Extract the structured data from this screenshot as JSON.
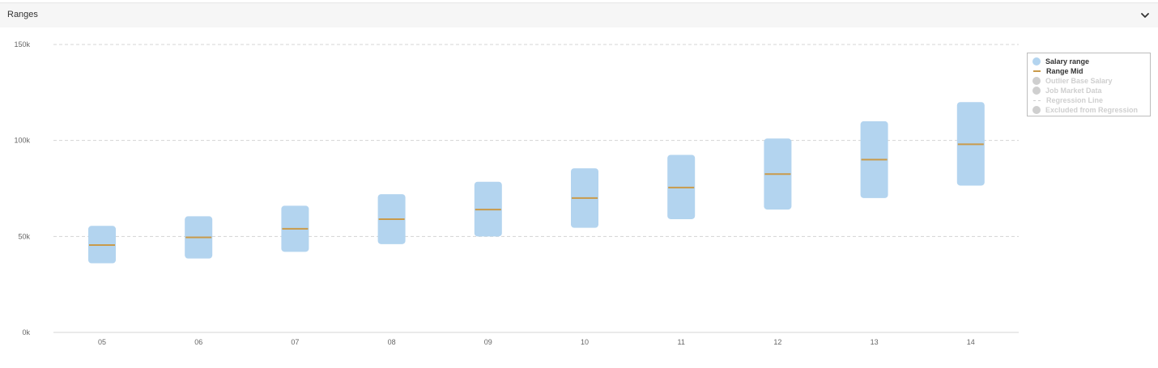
{
  "header": {
    "title": "Ranges"
  },
  "colors": {
    "range_fill": "#b3d4ef",
    "mid_line": "#c99a4a",
    "grid": "#d4d4d4",
    "legend_inactive": "#cfcfcf"
  },
  "legend": [
    {
      "label": "Salary range",
      "swatch": "dot",
      "color": "#b3d4ef",
      "active": true
    },
    {
      "label": "Range Mid",
      "swatch": "line",
      "color": "#c99a4a",
      "active": true
    },
    {
      "label": "Outlier Base Salary",
      "swatch": "dot",
      "color": "#cfcfcf",
      "active": false
    },
    {
      "label": "Job Market Data",
      "swatch": "dot",
      "color": "#cfcfcf",
      "active": false
    },
    {
      "label": "Regression Line",
      "swatch": "dash",
      "color": "#cfcfcf",
      "active": false
    },
    {
      "label": "Excluded from Regression",
      "swatch": "dot",
      "color": "#cfcfcf",
      "active": false
    }
  ],
  "chart_data": {
    "type": "bar",
    "title": "",
    "xlabel": "",
    "ylabel": "",
    "categories": [
      "05",
      "06",
      "07",
      "08",
      "09",
      "10",
      "11",
      "12",
      "13",
      "14"
    ],
    "ylim": [
      0,
      150000
    ],
    "yticks": [
      0,
      50000,
      100000,
      150000
    ],
    "ytick_labels": [
      "0k",
      "50k",
      "100k",
      "150k"
    ],
    "grid": true,
    "legend_position": "top-right",
    "series": [
      {
        "name": "Salary range",
        "min": [
          36000,
          38500,
          42000,
          46000,
          50000,
          54500,
          59000,
          64000,
          70000,
          76500
        ],
        "max": [
          55500,
          60500,
          66000,
          72000,
          78500,
          85500,
          92500,
          101000,
          110000,
          120000
        ]
      },
      {
        "name": "Range Mid",
        "values": [
          45500,
          49500,
          54000,
          59000,
          64000,
          70000,
          75500,
          82500,
          90000,
          98000
        ]
      }
    ]
  }
}
